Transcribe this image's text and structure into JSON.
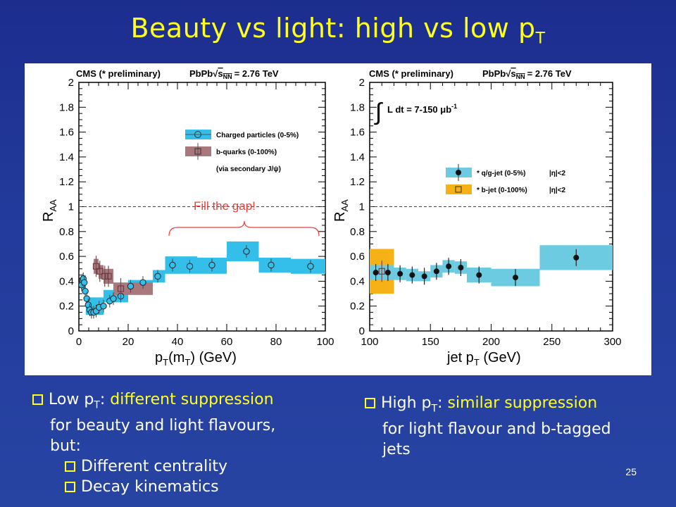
{
  "slide": {
    "title_main": "Beauty vs light: high vs low p",
    "title_sub": "T",
    "page_number": "25"
  },
  "annotation": {
    "text": "Fill the gap!"
  },
  "bullets_left": {
    "b1_pre": "Low p",
    "b1_sub": "T",
    "b1_colon": ":",
    "b1_hl": "different suppression",
    "b1_rest1": "for beauty and light flavours,",
    "b1_rest2": "but:",
    "sub1": "Different centrality",
    "sub2": "Decay kinematics"
  },
  "bullets_right": {
    "b1_pre": "High p",
    "b1_sub": "T",
    "b1_colon": ":",
    "b1_hl": "similar suppression",
    "b1_rest1": "for light flavour and b-tagged",
    "b1_rest2": "jets"
  },
  "colors": {
    "background": "#223a9b",
    "title": "#ffff1e",
    "cyan_band": "#33bfe9",
    "brown_band": "#a9787c",
    "orange_band": "#f6b117",
    "annotation": "#e8413a"
  },
  "chart_data": [
    {
      "type": "scatter",
      "header": "CMS (* preliminary)",
      "system_pre": "PbPb",
      "system_post": "= 2.76 TeV",
      "ylabel_main": "R",
      "ylabel_sub": "AA",
      "xlabel_a": "p",
      "xlabel_b": "T",
      "xlabel_c": "(m",
      "xlabel_d": "T",
      "xlabel_e": ") (GeV)",
      "xlim": [
        0,
        100
      ],
      "ylim": [
        0,
        2
      ],
      "x_ticks": [
        "0",
        "20",
        "40",
        "60",
        "80",
        "100"
      ],
      "y_ticks": [
        "0",
        "0.2",
        "0.4",
        "0.6",
        "0.8",
        "1",
        "1.2",
        "1.4",
        "1.6",
        "1.8",
        "2"
      ],
      "reference_line": 1,
      "legend": {
        "placement": "top-right",
        "entries": [
          "Charged particles (0-5%)",
          "b-quarks (0-100%)"
        ],
        "note": "(via secondary J/ψ)"
      },
      "series": [
        {
          "name": "Charged particles (0-5%)",
          "marker": "open-circle",
          "color": "#33bfe9",
          "x": [
            1.1,
            1.4,
            1.8,
            2.2,
            2.6,
            3.2,
            3.8,
            4.4,
            5.1,
            6.0,
            7.0,
            8.2,
            10.0,
            12.5,
            14.0,
            17.0,
            21.0,
            26.0,
            32.0,
            38.0,
            45.0,
            54.0,
            68.0,
            78.0,
            94.0
          ],
          "y": [
            0.37,
            0.41,
            0.42,
            0.39,
            0.32,
            0.26,
            0.21,
            0.17,
            0.15,
            0.15,
            0.16,
            0.19,
            0.2,
            0.24,
            0.26,
            0.28,
            0.36,
            0.39,
            0.44,
            0.53,
            0.52,
            0.53,
            0.64,
            0.53,
            0.52
          ],
          "band_x": [
            [
              0.8,
              2.8
            ],
            [
              2.8,
              10.0
            ],
            [
              10.0,
              20.0
            ],
            [
              20.0,
              30.0
            ],
            [
              30.0,
              35.0
            ],
            [
              35.0,
              48.0
            ],
            [
              48.0,
              60.0
            ],
            [
              60.0,
              73.0
            ],
            [
              73.0,
              86.0
            ],
            [
              86.0,
              100.0
            ]
          ],
          "band_y": [
            [
              0.33,
              0.45
            ],
            [
              0.13,
              0.27
            ],
            [
              0.23,
              0.33
            ],
            [
              0.31,
              0.41
            ],
            [
              0.39,
              0.49
            ],
            [
              0.46,
              0.6
            ],
            [
              0.46,
              0.59
            ],
            [
              0.56,
              0.72
            ],
            [
              0.47,
              0.59
            ],
            [
              0.46,
              0.58
            ]
          ]
        },
        {
          "name": "b-quarks (0-100%)",
          "marker": "open-square",
          "color": "#a9787c",
          "x": [
            7.0,
            8.5,
            10.5,
            12.0,
            17.0
          ],
          "y": [
            0.52,
            0.48,
            0.44,
            0.44,
            0.34
          ],
          "band_x": [
            [
              6.0,
              8.0
            ],
            [
              8.0,
              10.0
            ],
            [
              10.0,
              12.0
            ],
            [
              12.0,
              14.0
            ],
            [
              14.0,
              30.0
            ]
          ],
          "band_y": [
            [
              0.46,
              0.58
            ],
            [
              0.42,
              0.53
            ],
            [
              0.38,
              0.5
            ],
            [
              0.38,
              0.5
            ],
            [
              0.29,
              0.39
            ]
          ]
        }
      ]
    },
    {
      "type": "scatter",
      "header": "CMS (* preliminary)",
      "system_pre": "PbPb",
      "system_post": "= 2.76 TeV",
      "lumi": "L dt = 7-150 μb",
      "lumi_exp": "-1",
      "ylabel_main": "R",
      "ylabel_sub": "AA",
      "xlabel_a": "jet p",
      "xlabel_b": "T",
      "xlabel_c": " (GeV)",
      "xlim": [
        100,
        300
      ],
      "ylim": [
        0,
        2
      ],
      "x_ticks": [
        "100",
        "150",
        "200",
        "250",
        "300"
      ],
      "y_ticks": [
        "0",
        "0.2",
        "0.4",
        "0.6",
        "0.8",
        "1",
        "1.2",
        "1.4",
        "1.6",
        "1.8",
        "2"
      ],
      "reference_line": 1,
      "legend": {
        "placement": "center-right",
        "entries": [
          "* q/g-jet (0-5%)",
          "* b-jet (0-100%)"
        ],
        "eta_cut": "|η|<2"
      },
      "series": [
        {
          "name": "* q/g-jet (0-5%)",
          "marker": "filled-circle",
          "color": "#6ccbe0",
          "x": [
            105,
            115,
            125,
            135,
            145,
            155,
            165,
            175,
            190,
            220,
            270
          ],
          "y": [
            0.47,
            0.47,
            0.46,
            0.45,
            0.44,
            0.48,
            0.52,
            0.51,
            0.45,
            0.43,
            0.59
          ],
          "band_x": [
            [
              100,
              110
            ],
            [
              110,
              120
            ],
            [
              120,
              130
            ],
            [
              130,
              140
            ],
            [
              140,
              150
            ],
            [
              150,
              160
            ],
            [
              160,
              170
            ],
            [
              170,
              180
            ],
            [
              180,
              200
            ],
            [
              200,
              240
            ],
            [
              240,
              300
            ]
          ],
          "band_y": [
            [
              0.41,
              0.53
            ],
            [
              0.41,
              0.53
            ],
            [
              0.41,
              0.51
            ],
            [
              0.4,
              0.5
            ],
            [
              0.4,
              0.48
            ],
            [
              0.43,
              0.53
            ],
            [
              0.47,
              0.57
            ],
            [
              0.46,
              0.56
            ],
            [
              0.39,
              0.51
            ],
            [
              0.36,
              0.5
            ],
            [
              0.49,
              0.69
            ]
          ]
        },
        {
          "name": "* b-jet (0-100%)",
          "marker": "open-square",
          "color": "#f6b117",
          "x": [
            110
          ],
          "y": [
            0.48
          ],
          "band_x": [
            [
              100,
              120
            ]
          ],
          "band_y": [
            [
              0.3,
              0.66
            ]
          ]
        }
      ]
    }
  ]
}
